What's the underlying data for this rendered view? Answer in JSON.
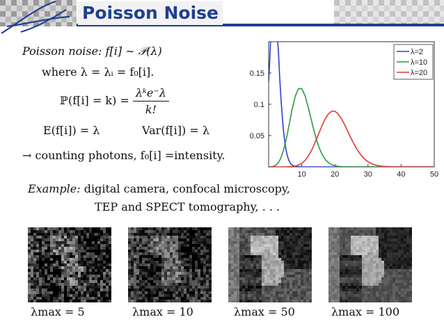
{
  "slide": {
    "title": "Poisson Noise"
  },
  "body": {
    "model_prefix": "Poisson noise:",
    "model_expr": "f[i] ∼ 𝒫(λ)",
    "where_line": "where λ = λᵢ = f₀[i].",
    "pmf_lhs": "ℙ(f[i] = k) =",
    "pmf_num": "λᵏe⁻λ",
    "pmf_den": "k!",
    "expectation": "E(f[i]) = λ",
    "variance": "Var(f[i]) = λ",
    "arrow_line": "→ counting photons, f₀[i] =intensity.",
    "example_prefix": "Example:",
    "example_line1": "digital camera, confocal microscopy,",
    "example_line2": "TEP and SPECT tomography, . . ."
  },
  "images": [
    {
      "label": "λmax = 5",
      "noise_level": 5
    },
    {
      "label": "λmax = 10",
      "noise_level": 10
    },
    {
      "label": "λmax = 50",
      "noise_level": 50
    },
    {
      "label": "λmax = 100",
      "noise_level": 100
    }
  ],
  "chart_data": {
    "type": "line",
    "x_range": [
      0,
      50
    ],
    "y_range": [
      0,
      0.2
    ],
    "x_ticks": [
      "10",
      "20",
      "30",
      "40",
      "50"
    ],
    "y_ticks": [
      "0.05",
      "0.1",
      "0.15"
    ],
    "legend_position": "top-right",
    "series": [
      {
        "name": "λ=2",
        "color": "#2b3fd6",
        "lambda": 2
      },
      {
        "name": "λ=10",
        "color": "#2e9a3a",
        "lambda": 10
      },
      {
        "name": "λ=20",
        "color": "#d93a32",
        "lambda": 20
      }
    ]
  }
}
